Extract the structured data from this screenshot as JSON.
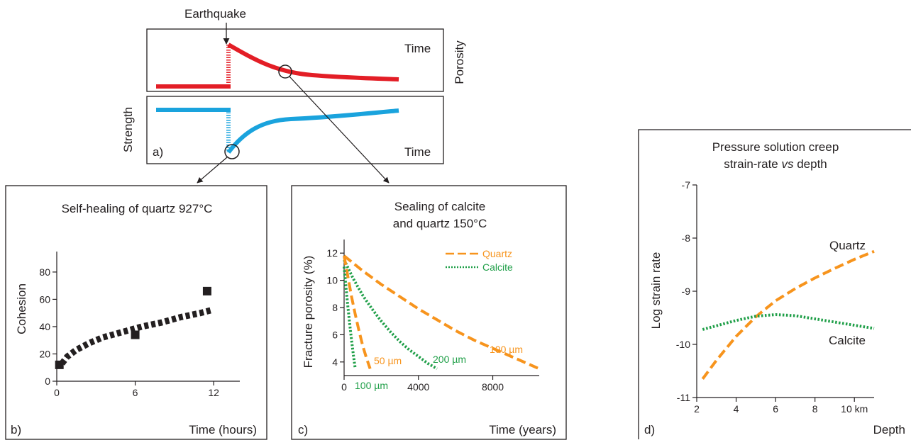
{
  "colors": {
    "porosity": "#e31e26",
    "strength": "#1aa3dd",
    "quartz": "#f7941d",
    "calcite": "#1f9f48",
    "ink": "#231f20"
  },
  "panel_a": {
    "earthquake_label": "Earthquake",
    "time_label_top": "Time",
    "porosity_label": "Porosity",
    "strength_label": "Strength",
    "panel_letter": "a)",
    "time_label_bottom": "Time"
  },
  "chart_data": [
    {
      "type": "scatter",
      "id": "b",
      "panel_letter": "b)",
      "title": "Self-healing of quartz 927°C",
      "xlabel": "Time (hours)",
      "ylabel": "Cohesion",
      "xlim": [
        0,
        14
      ],
      "ylim": [
        0,
        95
      ],
      "xticks": [
        0,
        6,
        12
      ],
      "yticks": [
        0,
        20,
        40,
        60,
        80
      ],
      "points": [
        {
          "x": 0.2,
          "y": 12
        },
        {
          "x": 6,
          "y": 34
        },
        {
          "x": 11.5,
          "y": 66
        }
      ],
      "fit_curve": [
        [
          0.4,
          13
        ],
        [
          0.8,
          18
        ],
        [
          1.5,
          23
        ],
        [
          2.5,
          28
        ],
        [
          3.5,
          32
        ],
        [
          5,
          36
        ],
        [
          6.5,
          40
        ],
        [
          8,
          43
        ],
        [
          9.5,
          47
        ],
        [
          11,
          50
        ],
        [
          11.8,
          52
        ]
      ]
    },
    {
      "type": "line",
      "id": "c",
      "panel_letter": "c)",
      "title_line1": "Sealing of calcite",
      "title_line2": "and quartz 150°C",
      "xlabel": "Time (years)",
      "ylabel": "Fracture porosity (%)",
      "xlim": [
        0,
        10500
      ],
      "ylim": [
        3,
        13
      ],
      "xticks": [
        0,
        4000,
        8000
      ],
      "yticks": [
        4,
        6,
        8,
        10,
        12
      ],
      "legend": [
        {
          "name": "Quartz",
          "style": "dashed"
        },
        {
          "name": "Calcite",
          "style": "dotted"
        }
      ],
      "series": [
        {
          "family": "quartz",
          "style": "dashed",
          "label": "100 µm",
          "x": [
            0,
            1000,
            2000,
            3000,
            4000,
            5000,
            6000,
            7000,
            8000,
            9000,
            10000,
            10500
          ],
          "y": [
            11.8,
            10.7,
            9.7,
            8.8,
            7.9,
            7.1,
            6.3,
            5.6,
            5.0,
            4.4,
            3.8,
            3.5
          ]
        },
        {
          "family": "calcite",
          "style": "dotted",
          "label": "200 µm",
          "x": [
            0,
            500,
            1000,
            1500,
            2000,
            2500,
            3000,
            3500,
            4000,
            4500,
            5000
          ],
          "y": [
            11.5,
            10.1,
            8.9,
            7.9,
            7.0,
            6.2,
            5.5,
            4.9,
            4.4,
            3.9,
            3.5
          ]
        },
        {
          "family": "quartz",
          "style": "dashed",
          "label": "50 µm",
          "x": [
            0,
            200,
            400,
            600,
            800,
            1000,
            1200,
            1400
          ],
          "y": [
            11.8,
            10.3,
            8.8,
            7.5,
            6.3,
            5.2,
            4.3,
            3.5
          ]
        },
        {
          "family": "calcite",
          "style": "dotted",
          "label": "100 µm",
          "x": [
            0,
            100,
            200,
            300,
            400,
            500,
            600
          ],
          "y": [
            11.0,
            9.5,
            8.1,
            6.8,
            5.6,
            4.5,
            3.5
          ]
        }
      ]
    },
    {
      "type": "line",
      "id": "d",
      "panel_letter": "d)",
      "title_line1": "Pressure solution creep",
      "title_line2_pre": "strain-rate ",
      "title_line2_vs": "vs",
      "title_line2_post": " depth",
      "xlabel": "Depth",
      "ylabel": "Log strain rate",
      "xlim": [
        2,
        11
      ],
      "ylim": [
        -11,
        -7
      ],
      "xticks": [
        2,
        4,
        6,
        8,
        10
      ],
      "xtick_labels": [
        "2",
        "4",
        "6",
        "8",
        "10 km"
      ],
      "yticks": [
        -11,
        -10,
        -9,
        -8,
        -7
      ],
      "series": [
        {
          "name": "Quartz",
          "style": "dashed",
          "x": [
            2.3,
            3,
            4,
            5,
            6,
            7,
            8,
            9,
            10,
            11
          ],
          "y": [
            -10.65,
            -10.3,
            -9.85,
            -9.48,
            -9.18,
            -8.95,
            -8.75,
            -8.57,
            -8.4,
            -8.25
          ]
        },
        {
          "name": "Calcite",
          "style": "dotted",
          "x": [
            2.3,
            3,
            4,
            5,
            6,
            7,
            8,
            9,
            10,
            11
          ],
          "y": [
            -9.72,
            -9.65,
            -9.55,
            -9.47,
            -9.44,
            -9.46,
            -9.52,
            -9.58,
            -9.64,
            -9.7
          ]
        }
      ]
    }
  ]
}
